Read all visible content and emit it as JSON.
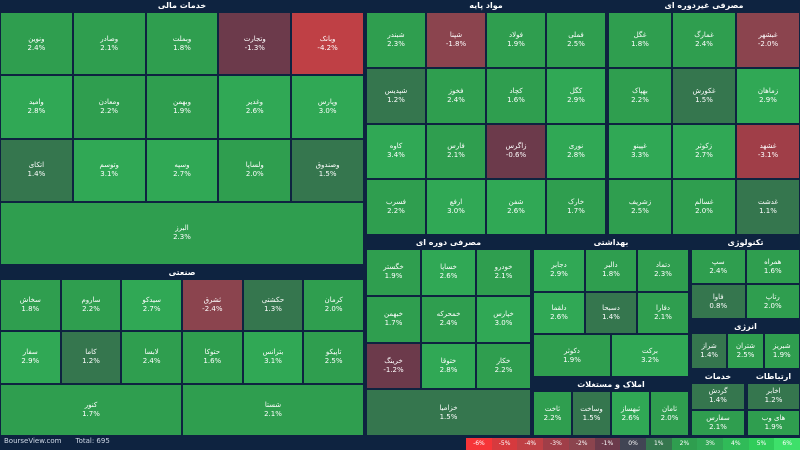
{
  "sectors": [
    {
      "title": "خدمات مالی",
      "tiles": [
        {
          "name": "وبانک",
          "change": "-4.2%"
        },
        {
          "name": "وتجارت",
          "change": "-1.3%"
        },
        {
          "name": "وبملت",
          "change": "1.8%"
        },
        {
          "name": "وصادر",
          "change": "2.1%"
        },
        {
          "name": "ونوین",
          "change": "2.4%"
        },
        {
          "name": "وپارس",
          "change": "3.0%"
        },
        {
          "name": "وغدیر",
          "change": "2.6%"
        },
        {
          "name": "وبهمن",
          "change": "1.9%"
        },
        {
          "name": "ومعادن",
          "change": "2.2%"
        },
        {
          "name": "وامید",
          "change": "2.8%"
        },
        {
          "name": "وصندوق",
          "change": "1.5%"
        },
        {
          "name": "ولساپا",
          "change": "2.0%"
        },
        {
          "name": "وسپه",
          "change": "2.7%"
        },
        {
          "name": "وتوسم",
          "change": "3.1%"
        },
        {
          "name": "اتکای",
          "change": "1.4%"
        },
        {
          "name": "البرز",
          "change": "2.3%"
        }
      ]
    },
    {
      "title": "مواد پایه",
      "tiles": [
        {
          "name": "فملی",
          "change": "2.5%"
        },
        {
          "name": "فولاد",
          "change": "1.9%"
        },
        {
          "name": "شپنا",
          "change": "-1.8%"
        },
        {
          "name": "شبندر",
          "change": "2.3%"
        },
        {
          "name": "کگل",
          "change": "2.9%"
        },
        {
          "name": "کچاد",
          "change": "1.6%"
        },
        {
          "name": "فخوز",
          "change": "2.4%"
        },
        {
          "name": "شپدیس",
          "change": "1.2%"
        },
        {
          "name": "نوری",
          "change": "2.8%"
        },
        {
          "name": "زاگرس",
          "change": "-0.6%"
        },
        {
          "name": "فارس",
          "change": "2.1%"
        },
        {
          "name": "کاوه",
          "change": "3.4%"
        },
        {
          "name": "خارک",
          "change": "1.7%"
        },
        {
          "name": "شفن",
          "change": "2.6%"
        },
        {
          "name": "ارفع",
          "change": "3.0%"
        },
        {
          "name": "فسرب",
          "change": "2.2%"
        }
      ]
    },
    {
      "title": "مصرفی غیردوره ای",
      "tiles": [
        {
          "name": "غبشهر",
          "change": "-2.0%"
        },
        {
          "name": "غمارگ",
          "change": "2.4%"
        },
        {
          "name": "غگل",
          "change": "1.8%"
        },
        {
          "name": "زماهان",
          "change": "2.9%"
        },
        {
          "name": "غکورش",
          "change": "1.5%"
        },
        {
          "name": "بهپاک",
          "change": "2.2%"
        },
        {
          "name": "غشهد",
          "change": "-3.1%"
        },
        {
          "name": "زکوثر",
          "change": "2.7%"
        },
        {
          "name": "غپینو",
          "change": "3.3%"
        },
        {
          "name": "غدشت",
          "change": "1.1%"
        },
        {
          "name": "غسالم",
          "change": "2.0%"
        },
        {
          "name": "زشریف",
          "change": "2.5%"
        }
      ]
    },
    {
      "title": "مصرفی دوره ای",
      "tiles": [
        {
          "name": "خودرو",
          "change": "2.1%"
        },
        {
          "name": "خساپا",
          "change": "2.6%"
        },
        {
          "name": "خگستر",
          "change": "1.9%"
        },
        {
          "name": "خپارس",
          "change": "3.0%"
        },
        {
          "name": "خمحرکه",
          "change": "2.4%"
        },
        {
          "name": "خبهمن",
          "change": "1.7%"
        },
        {
          "name": "خکار",
          "change": "2.2%"
        },
        {
          "name": "ختوقا",
          "change": "2.8%"
        },
        {
          "name": "خرینگ",
          "change": "-1.2%"
        },
        {
          "name": "خزامیا",
          "change": "1.5%"
        }
      ]
    },
    {
      "title": "بهداشتی",
      "tiles": [
        {
          "name": "دتماد",
          "change": "2.3%"
        },
        {
          "name": "دالبر",
          "change": "1.8%"
        },
        {
          "name": "دجابر",
          "change": "2.9%"
        },
        {
          "name": "دفارا",
          "change": "2.1%"
        },
        {
          "name": "دسبحا",
          "change": "1.4%"
        },
        {
          "name": "دلقما",
          "change": "2.6%"
        },
        {
          "name": "برکت",
          "change": "3.2%"
        },
        {
          "name": "دکوثر",
          "change": "1.9%"
        }
      ]
    },
    {
      "title": "تکنولوژی",
      "tiles": [
        {
          "name": "همراه",
          "change": "1.6%"
        },
        {
          "name": "سپ",
          "change": "2.4%"
        },
        {
          "name": "رتاپ",
          "change": "2.0%"
        },
        {
          "name": "فاوا",
          "change": "0.8%"
        }
      ]
    },
    {
      "title": "انرژی",
      "tiles": [
        {
          "name": "شبریز",
          "change": "1.9%"
        },
        {
          "name": "شتران",
          "change": "2.5%"
        },
        {
          "name": "شراز",
          "change": "1.4%"
        }
      ]
    },
    {
      "title": "صنعتی",
      "tiles": [
        {
          "name": "کرمان",
          "change": "2.0%"
        },
        {
          "name": "حکشتی",
          "change": "1.3%"
        },
        {
          "name": "ثشرق",
          "change": "-2.4%"
        },
        {
          "name": "سیدکو",
          "change": "2.7%"
        },
        {
          "name": "ساروم",
          "change": "2.2%"
        },
        {
          "name": "سخاش",
          "change": "1.8%"
        },
        {
          "name": "تاپیکو",
          "change": "2.5%"
        },
        {
          "name": "بترانس",
          "change": "3.1%"
        },
        {
          "name": "حتوکا",
          "change": "1.6%"
        },
        {
          "name": "لابسا",
          "change": "2.4%"
        },
        {
          "name": "کاما",
          "change": "1.2%"
        },
        {
          "name": "سفار",
          "change": "2.9%"
        },
        {
          "name": "شستا",
          "change": "2.1%"
        },
        {
          "name": "کنور",
          "change": "1.7%"
        }
      ]
    },
    {
      "title": "املاک و مستغلات",
      "tiles": [
        {
          "name": "ثامان",
          "change": "2.0%"
        },
        {
          "name": "ثبهساز",
          "change": "2.6%"
        },
        {
          "name": "وساخت",
          "change": "1.5%"
        },
        {
          "name": "ثاخت",
          "change": "2.2%"
        }
      ]
    },
    {
      "title": "خدمات رفاهی",
      "tiles": [
        {
          "name": "گردش",
          "change": "1.4%"
        },
        {
          "name": "سفارس",
          "change": "2.1%"
        }
      ]
    },
    {
      "title": "ارتباطات",
      "tiles": [
        {
          "name": "اخابر",
          "change": "1.2%"
        },
        {
          "name": "های وب",
          "change": "1.9%"
        }
      ]
    }
  ],
  "footer": {
    "site": "BourseView.com",
    "total": "Total: 695"
  },
  "legend": [
    {
      "label": "-6%",
      "color": "#f63538"
    },
    {
      "label": "-5%",
      "color": "#d63a3e"
    },
    {
      "label": "-4%",
      "color": "#bf4045"
    },
    {
      "label": "-3%",
      "color": "#a03e48"
    },
    {
      "label": "-2%",
      "color": "#8b444e"
    },
    {
      "label": "-1%",
      "color": "#6c3a4b"
    },
    {
      "label": "0%",
      "color": "#414554"
    },
    {
      "label": "1%",
      "color": "#35764e"
    },
    {
      "label": "2%",
      "color": "#2f9e4f"
    },
    {
      "label": "3%",
      "color": "#30a855"
    },
    {
      "label": "4%",
      "color": "#30bb58"
    },
    {
      "label": "5%",
      "color": "#30cc5a"
    },
    {
      "label": "6%",
      "color": "#3ee06a"
    }
  ]
}
